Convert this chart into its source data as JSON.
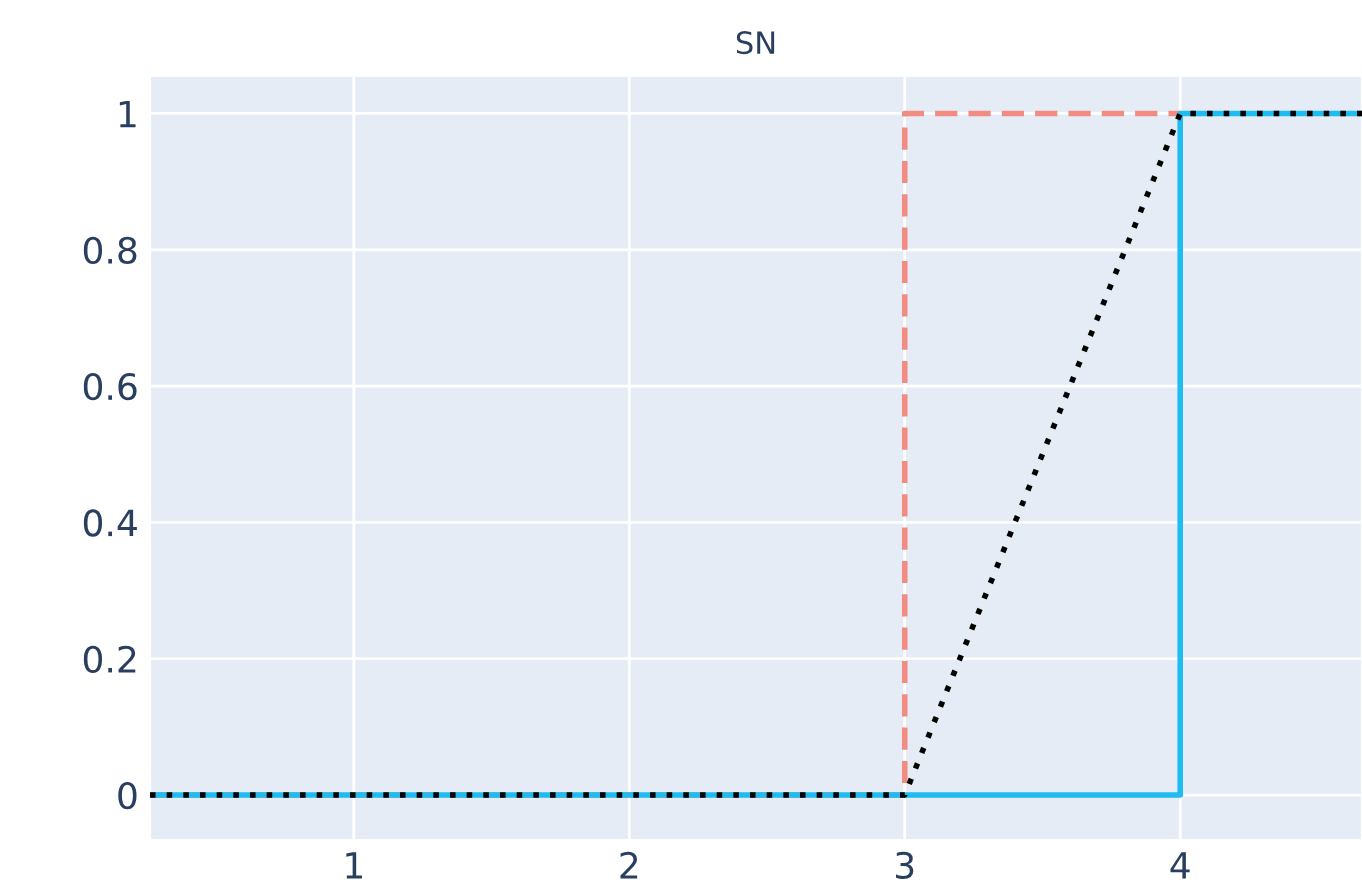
{
  "chart_data": {
    "type": "line",
    "title": "SN",
    "xlim": [
      0.26,
      4.66
    ],
    "ylim": [
      -0.066,
      1.055
    ],
    "xticks": [
      1,
      2,
      3,
      4
    ],
    "yticks": [
      0,
      0.2,
      0.4,
      0.6,
      0.8,
      1
    ],
    "grid": true,
    "legend": false,
    "series": [
      {
        "type": "step",
        "color": "#f28b82",
        "line_style": "dashed",
        "x": [
          0.26,
          3,
          4
        ],
        "values": [
          0,
          1,
          1
        ]
      },
      {
        "type": "step",
        "color": "#1ebcf0",
        "line_style": "solid",
        "x": [
          0.26,
          4,
          4.66
        ],
        "values": [
          0,
          1,
          1
        ]
      },
      {
        "type": "line",
        "color": "#000000",
        "line_style": "dotted",
        "x": [
          0.26,
          3,
          4,
          4.66
        ],
        "values": [
          0,
          0,
          1,
          1
        ]
      }
    ]
  }
}
